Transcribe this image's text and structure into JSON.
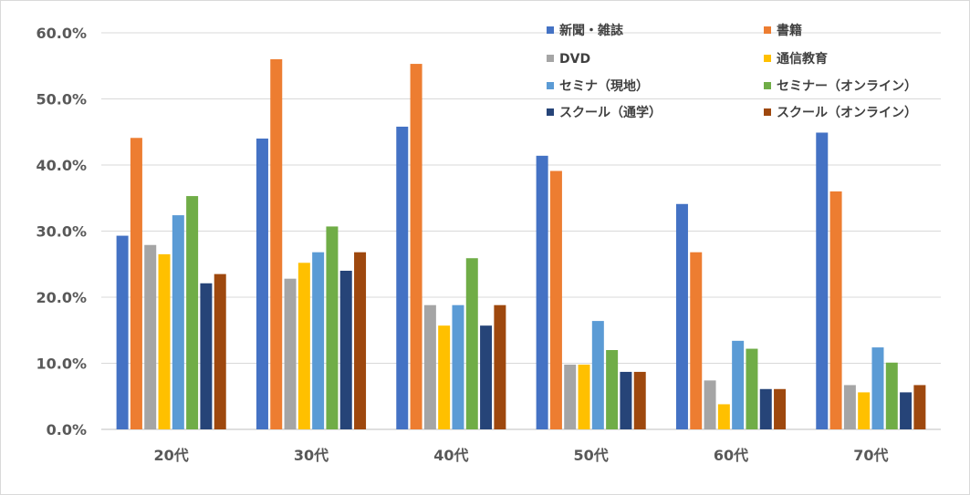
{
  "chart_data": {
    "type": "bar",
    "categories": [
      "20代",
      "30代",
      "40代",
      "50代",
      "60代",
      "70代"
    ],
    "ylim": [
      0,
      60
    ],
    "y_tick_values": [
      0,
      10,
      20,
      30,
      40,
      50,
      60
    ],
    "y_tick_labels": [
      "0.0%",
      "10.0%",
      "20.0%",
      "30.0%",
      "40.0%",
      "50.0%",
      "60.0%"
    ],
    "grid": true,
    "legend_placement": "top-right",
    "series": [
      {
        "name": "新聞・雑誌",
        "color": "#4472C4",
        "values": [
          29.3,
          44.0,
          45.8,
          41.4,
          34.1,
          44.9
        ]
      },
      {
        "name": "書籍",
        "color": "#ED7D31",
        "values": [
          44.1,
          56.0,
          55.3,
          39.1,
          26.8,
          36.0
        ]
      },
      {
        "name": "DVD",
        "color": "#A5A5A5",
        "values": [
          27.9,
          22.8,
          18.8,
          9.8,
          7.4,
          6.7
        ]
      },
      {
        "name": "通信教育",
        "color": "#FFC000",
        "values": [
          26.5,
          25.2,
          15.7,
          9.8,
          3.8,
          5.6
        ]
      },
      {
        "name": "セミナ（現地）",
        "color": "#5B9BD5",
        "values": [
          32.4,
          26.8,
          18.8,
          16.4,
          13.4,
          12.4
        ]
      },
      {
        "name": "セミナー（オンライン）",
        "color": "#70AD47",
        "values": [
          35.3,
          30.7,
          25.9,
          12.0,
          12.2,
          10.1
        ]
      },
      {
        "name": "スクール（通学）",
        "color": "#264478",
        "values": [
          22.1,
          24.0,
          15.7,
          8.7,
          6.1,
          5.6
        ]
      },
      {
        "name": "スクール（オンライン）",
        "color": "#9E480E",
        "values": [
          23.5,
          26.8,
          18.8,
          8.7,
          6.1,
          6.7
        ]
      }
    ]
  }
}
